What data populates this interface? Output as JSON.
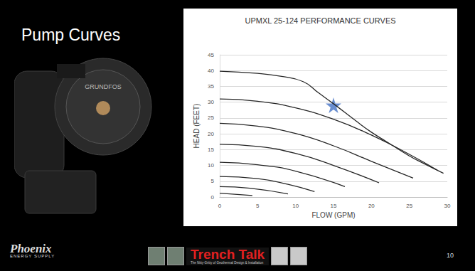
{
  "slide": {
    "title": "Pump Curves",
    "pump_label": "GRUNDFOS",
    "logo": {
      "name": "Phoenix",
      "tagline": "ENERGY SUPPLY"
    },
    "banner": {
      "title": "Trench Talk",
      "subtitle": "The Nitty-Gritty of Geothermal Design & Installation"
    },
    "page": 10
  },
  "chart_data": {
    "type": "line",
    "title": "UPMXL 25-124 PERFORMANCE CURVES",
    "x_label": "FLOW (GPM)",
    "y_label": "HEAD (FEET)",
    "xlim": [
      0,
      30
    ],
    "ylim": [
      0,
      45
    ],
    "xticks": [
      0,
      5,
      10,
      15,
      20,
      25,
      30
    ],
    "yticks": [
      0,
      5,
      10,
      15,
      20,
      25,
      30,
      35,
      40,
      45
    ],
    "grid": true,
    "series": [
      {
        "color": "#262626",
        "x": [
          0,
          5,
          8,
          11,
          13,
          15,
          18,
          20,
          22,
          25,
          27,
          29.5
        ],
        "values": [
          39.8,
          39.1,
          38.2,
          36.5,
          33,
          29.5,
          24,
          20.5,
          17.5,
          13,
          10.5,
          7.5
        ]
      },
      {
        "color": "#262626",
        "x": [
          0,
          5,
          10,
          15,
          20,
          25,
          28.7
        ],
        "values": [
          31,
          30.3,
          28.2,
          24.6,
          19.6,
          13.5,
          8.5
        ]
      },
      {
        "color": "#262626",
        "x": [
          0,
          5,
          10,
          15,
          20,
          25.5
        ],
        "values": [
          23.3,
          22.4,
          20.1,
          16.2,
          11.3,
          6
        ]
      },
      {
        "color": "#262626",
        "x": [
          0,
          5,
          10,
          15,
          21
        ],
        "values": [
          16.7,
          16,
          13.8,
          10,
          4.5
        ]
      },
      {
        "color": "#262626",
        "x": [
          0,
          5,
          10,
          16.5
        ],
        "values": [
          11,
          10.2,
          8.2,
          3.3
        ]
      },
      {
        "color": "#262626",
        "x": [
          0,
          5,
          9,
          12.5
        ],
        "values": [
          6.5,
          5.8,
          4,
          1.7
        ]
      },
      {
        "color": "#262626",
        "x": [
          0,
          4,
          9
        ],
        "values": [
          3.3,
          2.8,
          1
        ]
      },
      {
        "color": "#262626",
        "x": [
          0,
          4.3
        ],
        "values": [
          1.2,
          0.5
        ]
      }
    ],
    "annotations": [
      {
        "x": 15,
        "y": 29,
        "marker": "star",
        "color": "#4472c4"
      }
    ]
  }
}
